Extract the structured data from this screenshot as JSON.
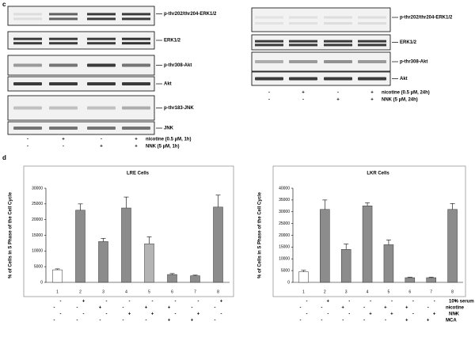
{
  "panel_labels": [
    "c",
    "d"
  ],
  "blots": [
    {
      "rows": [
        "p-thr202/thr204-ERK1/2",
        "ERK1/2",
        "p-thr308-Akt",
        "Akt",
        "p-thr183-JNK",
        "JNK"
      ],
      "treatments": [
        {
          "name": "nicotine (0.5 µM, 1h)",
          "signs": [
            "-",
            "+",
            "-",
            "+"
          ]
        },
        {
          "name": "NNK (5 µM, 1h)",
          "signs": [
            "-",
            "-",
            "+",
            "+"
          ]
        }
      ]
    },
    {
      "rows": [
        "p-thr202/thr204-ERK1/2",
        "ERK1/2",
        "p-thr308-Akt",
        "Akt"
      ],
      "treatments": [
        {
          "name": "nicotine (0.5 µM, 24h)",
          "signs": [
            "-",
            "+",
            "-",
            "+"
          ]
        },
        {
          "name": "NNK (5 µM, 24h)",
          "signs": [
            "-",
            "-",
            "+",
            "+"
          ]
        }
      ]
    }
  ],
  "chart_data": [
    {
      "type": "bar",
      "title": "LRE Cells",
      "y_label": "% of Cells in S Phase of the Cell Cycle",
      "categories": [
        "1",
        "2",
        "3",
        "4",
        "5",
        "6",
        "7",
        "8"
      ],
      "values": [
        4000,
        23000,
        13000,
        23700,
        12300,
        2500,
        2100,
        24000
      ],
      "errors": [
        300,
        2000,
        1000,
        3500,
        2200,
        300,
        200,
        3800
      ],
      "colors": [
        "#ffffff",
        "#8c8c8c",
        "#8c8c8c",
        "#8c8c8c",
        "#b4b4b4",
        "#8c8c8c",
        "#8c8c8c",
        "#8c8c8c"
      ],
      "ylim": [
        0,
        30000
      ],
      "yticks": [
        0,
        5000,
        10000,
        15000,
        20000,
        25000,
        30000
      ],
      "treatments": [
        {
          "signs": [
            "-",
            "+",
            "-",
            "-",
            "-",
            "-",
            "-",
            "+"
          ]
        },
        {
          "signs": [
            "-",
            "-",
            "+",
            "-",
            "+",
            "+",
            "-",
            "-"
          ]
        },
        {
          "signs": [
            "-",
            "-",
            "-",
            "+",
            "+",
            "-",
            "+",
            "-"
          ]
        },
        {
          "signs": [
            "-",
            "-",
            "-",
            "-",
            "-",
            "+",
            "+",
            "-"
          ]
        }
      ]
    },
    {
      "type": "bar",
      "title": "LKR Cells",
      "y_label": "% of Cells in S Phase of the Cell Cycle",
      "categories": [
        "1",
        "2",
        "3",
        "4",
        "5",
        "6",
        "7",
        "8"
      ],
      "values": [
        4500,
        31000,
        14000,
        32500,
        16000,
        2000,
        2000,
        31000
      ],
      "errors": [
        600,
        4000,
        2300,
        1300,
        2000,
        200,
        200,
        2500
      ],
      "colors": [
        "#ffffff",
        "#8c8c8c",
        "#8c8c8c",
        "#8c8c8c",
        "#8c8c8c",
        "#8c8c8c",
        "#8c8c8c",
        "#8c8c8c"
      ],
      "ylim": [
        0,
        40000
      ],
      "yticks": [
        0,
        5000,
        10000,
        15000,
        20000,
        25000,
        30000,
        35000,
        40000
      ],
      "treatments": [
        {
          "name": "10% serum",
          "signs": [
            "-",
            "+",
            "-",
            "-",
            "-",
            "-",
            "-",
            "+"
          ]
        },
        {
          "name": "nicotine",
          "signs": [
            "-",
            "-",
            "+",
            "-",
            "+",
            "+",
            "-",
            "-"
          ]
        },
        {
          "name": "NNK",
          "signs": [
            "-",
            "-",
            "-",
            "+",
            "+",
            "-",
            "+",
            "-"
          ]
        },
        {
          "name": "MCA",
          "signs": [
            "-",
            "-",
            "-",
            "-",
            "-",
            "+",
            "+",
            "-"
          ]
        }
      ]
    }
  ]
}
